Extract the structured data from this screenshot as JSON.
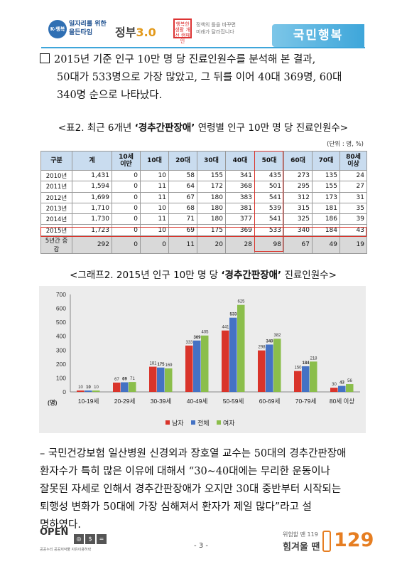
{
  "header": {
    "k_logo_badge": "K-행복",
    "k_logo_line1": "일자리를 위한",
    "k_logo_line2": "올든타임",
    "gov_logo_text": "정부",
    "gov_logo_num": "3.0",
    "campaign_badge": "행복한 생활 개선 캠페인",
    "campaign_line1": "정책의 틀을 바꾸면",
    "campaign_line2": "미래가 달라집니다",
    "banner": "국민행복"
  },
  "para1": {
    "line1": "2015년 기준 인구 10만 명 당 진료인원수를 분석해 본 결과,",
    "line2": "50대가 533명으로 가장 많았고, 그 뒤를 이어 40대 369명, 60대",
    "line3": "340명 순으로 나타났다."
  },
  "table_caption": {
    "prefix": "<표2. 최근 6개년 ",
    "bold": "‘경추간판장애’",
    "suffix": " 연령별 인구 10만 명 당 진료인원수>"
  },
  "table_unit": "(단위 : 명, %)",
  "table": {
    "headers": [
      "구분",
      "계",
      "10세\n이만",
      "10대",
      "20대",
      "30대",
      "40대",
      "50대",
      "60대",
      "70대",
      "80세\n이상"
    ],
    "rows": [
      [
        "2010년",
        "1,431",
        "0",
        "10",
        "58",
        "155",
        "341",
        "435",
        "273",
        "135",
        "24"
      ],
      [
        "2011년",
        "1,594",
        "0",
        "11",
        "64",
        "172",
        "368",
        "501",
        "295",
        "155",
        "27"
      ],
      [
        "2012년",
        "1,699",
        "0",
        "11",
        "67",
        "180",
        "383",
        "541",
        "312",
        "173",
        "31"
      ],
      [
        "2013년",
        "1,710",
        "0",
        "10",
        "68",
        "180",
        "381",
        "539",
        "315",
        "181",
        "35"
      ],
      [
        "2014년",
        "1,730",
        "0",
        "11",
        "71",
        "180",
        "377",
        "541",
        "325",
        "186",
        "39"
      ],
      [
        "2015년",
        "1,723",
        "0",
        "10",
        "69",
        "175",
        "369",
        "533",
        "340",
        "184",
        "43"
      ],
      [
        "5년간 증감",
        "292",
        "0",
        "0",
        "11",
        "20",
        "28",
        "98",
        "67",
        "49",
        "19"
      ]
    ]
  },
  "graph_caption": {
    "prefix": "<그래프2. 2015년 인구 10만 명 당 ",
    "bold": "‘경추간판장애’",
    "suffix": " 진료인원수>"
  },
  "chart_data": {
    "type": "bar",
    "categories": [
      "10-19세",
      "20-29세",
      "30-39세",
      "40-49세",
      "50-59세",
      "60-69세",
      "70-79세",
      "80세 이상"
    ],
    "series": [
      {
        "name": "남자",
        "color": "#d9342b",
        "values": [
          10,
          67,
          181,
          333,
          441,
          298,
          150,
          30
        ]
      },
      {
        "name": "전체",
        "color": "#4472c4",
        "values": [
          10,
          69,
          175,
          369,
          533,
          340,
          184,
          43
        ]
      },
      {
        "name": "여자",
        "color": "#8bbe4b",
        "values": [
          10,
          71,
          169,
          405,
          625,
          382,
          218,
          56
        ]
      }
    ],
    "ylim": [
      0,
      700
    ],
    "yticks": [
      "0",
      "100",
      "200",
      "300",
      "400",
      "500",
      "600",
      "700"
    ],
    "ylabel": "(명)",
    "legend_position": "bottom",
    "grid": false
  },
  "para2": {
    "line1": "– 국민건강보험 일산병원 신경외과 장호열 교수는 50대의 경추간판장애",
    "line2": "환자수가 특히 많은 이유에 대해서 “30~40대에는 무리한 운동이나",
    "line3": "잘못된 자세로 인해서 경추간판장애가 오지만 30대 중반부터 시작되는",
    "line4": "퇴행성 변화가 50대에 가장 심해져서 환자가 제일 많다”라고 설",
    "line5": "명하였다."
  },
  "footer": {
    "open_label": "OPEN",
    "open_caption": "공공누리 공공저작물 자유이용허락",
    "page_number": "- 3 -",
    "hotline_small": "위험할 땐 119",
    "hotline_big": "힘겨울 땐",
    "hotline_num": "129"
  }
}
